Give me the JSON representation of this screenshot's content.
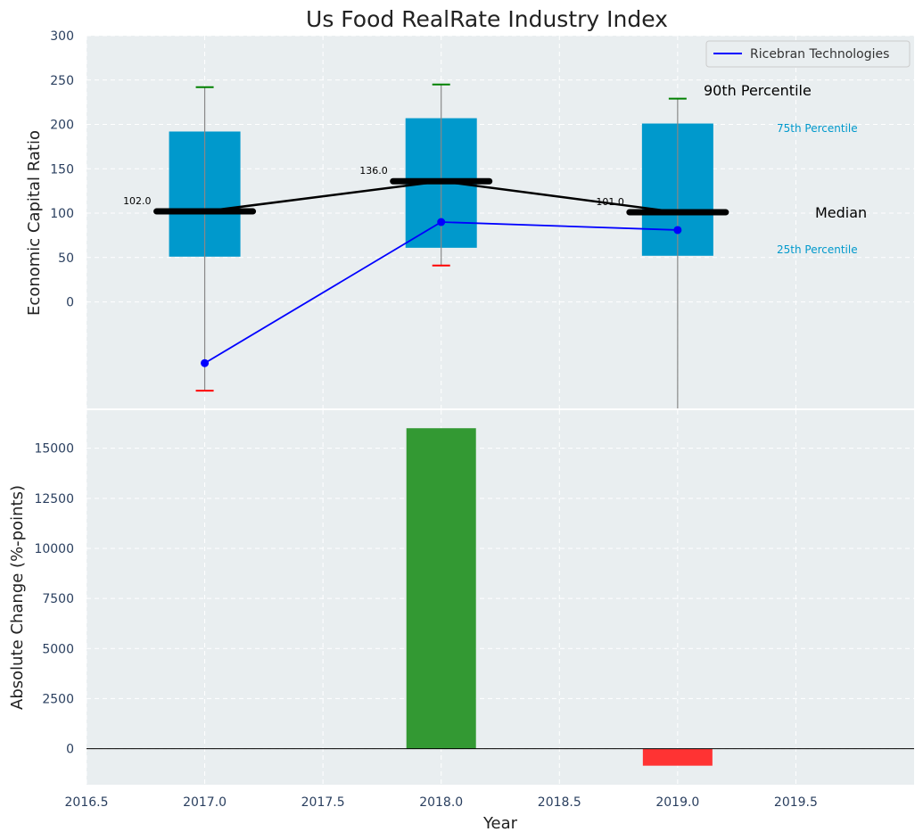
{
  "chart_data": {
    "type": "box+line+bar",
    "title": "Us Food RealRate Industry Index",
    "xlabel": "Year",
    "xlim": [
      2016.5,
      2020.0
    ],
    "x_ticks": [
      2016.5,
      2017.0,
      2017.5,
      2018.0,
      2018.5,
      2019.0,
      2019.5
    ],
    "x_tick_labels": [
      "2016.5",
      "2017.0",
      "2017.5",
      "2018.0",
      "2018.5",
      "2019.0",
      "2019.5"
    ],
    "grid": true,
    "top": {
      "ylabel": "Economic Capital Ratio",
      "ylim": [
        -120,
        300
      ],
      "y_ticks": [
        0,
        50,
        100,
        150,
        200,
        250,
        300
      ],
      "y_tick_labels": [
        "0",
        "50",
        "100",
        "150",
        "200",
        "250",
        "300"
      ],
      "boxes": [
        {
          "x": 2017.0,
          "p25": 51,
          "p75": 192,
          "median": 102,
          "p90": 242,
          "p10": -100,
          "median_label": "102.0"
        },
        {
          "x": 2018.0,
          "p25": 61,
          "p75": 207,
          "median": 136,
          "p90": 245,
          "p10": 41,
          "median_label": "136.0"
        },
        {
          "x": 2019.0,
          "p25": 52,
          "p75": 201,
          "median": 101,
          "p90": 229,
          "p10": -120,
          "median_label": "101.0"
        }
      ],
      "series": [
        {
          "name": "Ricebran Technologies",
          "x": [
            2017.0,
            2018.0,
            2019.0
          ],
          "values": [
            -69,
            90,
            81
          ],
          "color": "#0000ff"
        }
      ],
      "legend": {
        "position": "top-right",
        "entries": [
          "Ricebran Technologies"
        ]
      },
      "annotations": {
        "p90": "90th Percentile",
        "p75": "75th Percentile",
        "median": "Median",
        "p25": "25th Percentile"
      },
      "colors": {
        "box": "#0099cc",
        "median": "#000000",
        "p90_cap": "#008000",
        "p10_cap": "#ff0000",
        "percentile_text": "#0099cc"
      }
    },
    "bottom": {
      "type": "bar",
      "ylabel": "Absolute Change (%-points)",
      "ylim": [
        -1800,
        16900
      ],
      "y_ticks": [
        0,
        2500,
        5000,
        7500,
        10000,
        12500,
        15000
      ],
      "y_tick_labels": [
        "0",
        "2500",
        "5000",
        "7500",
        "10000",
        "12500",
        "15000"
      ],
      "x": [
        2018.0,
        2019.0
      ],
      "values": [
        16000,
        -850
      ],
      "colors": {
        "positive": "#339933",
        "negative": "#ff3333"
      }
    }
  }
}
